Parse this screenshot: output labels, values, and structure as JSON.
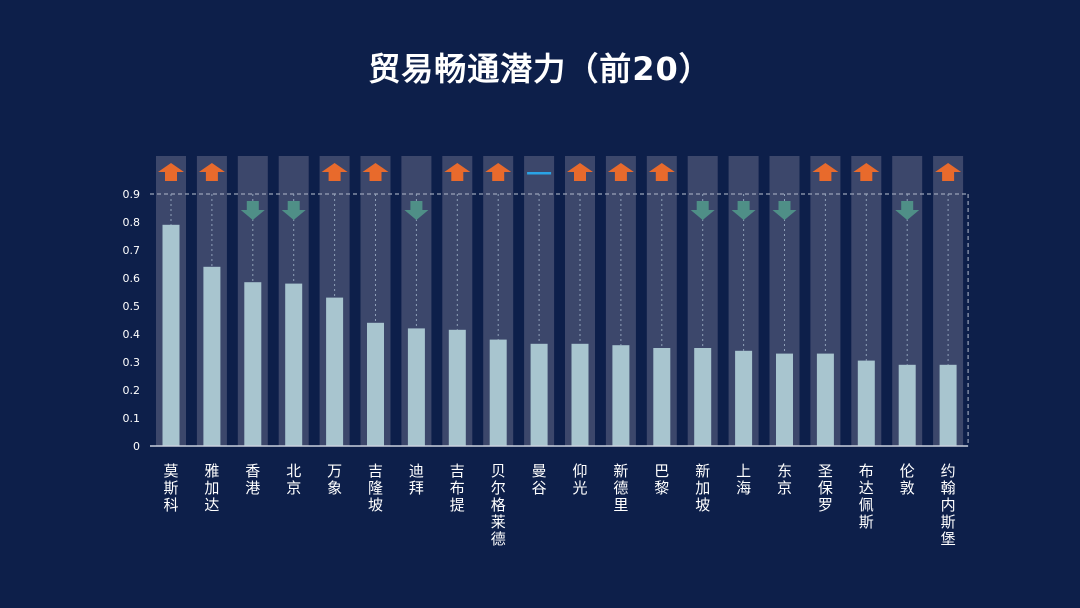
{
  "title": "贸易畅通潜力（前20）",
  "colors": {
    "background": "#0d1f4a",
    "bar": "#a8c5cf",
    "column_bg": "#3c476b",
    "up": "#e86a2c",
    "down": "#4f8f87",
    "flat": "#2aa3e6"
  },
  "chart_data": {
    "type": "bar",
    "categories": [
      "莫斯科",
      "雅加达",
      "香港",
      "北京",
      "万象",
      "吉隆坡",
      "迪拜",
      "吉布提",
      "贝尔格莱德",
      "曼谷",
      "仰光",
      "新德里",
      "巴黎",
      "新加坡",
      "上海",
      "东京",
      "圣保罗",
      "布达佩斯",
      "伦敦",
      "约翰内斯堡"
    ],
    "values": [
      0.79,
      0.64,
      0.585,
      0.58,
      0.53,
      0.44,
      0.42,
      0.415,
      0.38,
      0.365,
      0.365,
      0.36,
      0.35,
      0.35,
      0.34,
      0.33,
      0.33,
      0.305,
      0.29,
      0.29
    ],
    "trend": [
      "up",
      "up",
      "down",
      "down",
      "up",
      "up",
      "down",
      "up",
      "up",
      "flat",
      "up",
      "up",
      "up",
      "down",
      "down",
      "down",
      "up",
      "up",
      "down",
      "up"
    ],
    "ylim": [
      0,
      0.9
    ],
    "yticks": [
      "0",
      "0.1",
      "0.2",
      "0.3",
      "0.4",
      "0.5",
      "0.6",
      "0.7",
      "0.8",
      "0.9"
    ],
    "grid": false
  }
}
